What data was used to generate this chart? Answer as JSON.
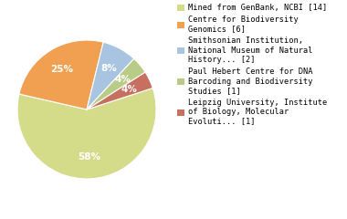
{
  "slices": [
    58,
    25,
    8,
    4,
    4
  ],
  "colors": [
    "#d4dc8a",
    "#f0a050",
    "#a8c4e0",
    "#b8cc88",
    "#c87060"
  ],
  "pct_labels": [
    "58%",
    "25%",
    "8%",
    "4%",
    "4%"
  ],
  "legend_labels": [
    "Mined from GenBank, NCBI [14]",
    "Centre for Biodiversity\nGenomics [6]",
    "Smithsonian Institution,\nNational Museum of Natural\nHistory... [2]",
    "Paul Hebert Centre for DNA\nBarcoding and Biodiversity\nStudies [1]",
    "Leipzig University, Institute\nof Biology, Molecular\nEvoluti... [1]"
  ],
  "startangle": 18,
  "background_color": "#ffffff",
  "label_fontsize": 7.5,
  "legend_fontsize": 6.2
}
